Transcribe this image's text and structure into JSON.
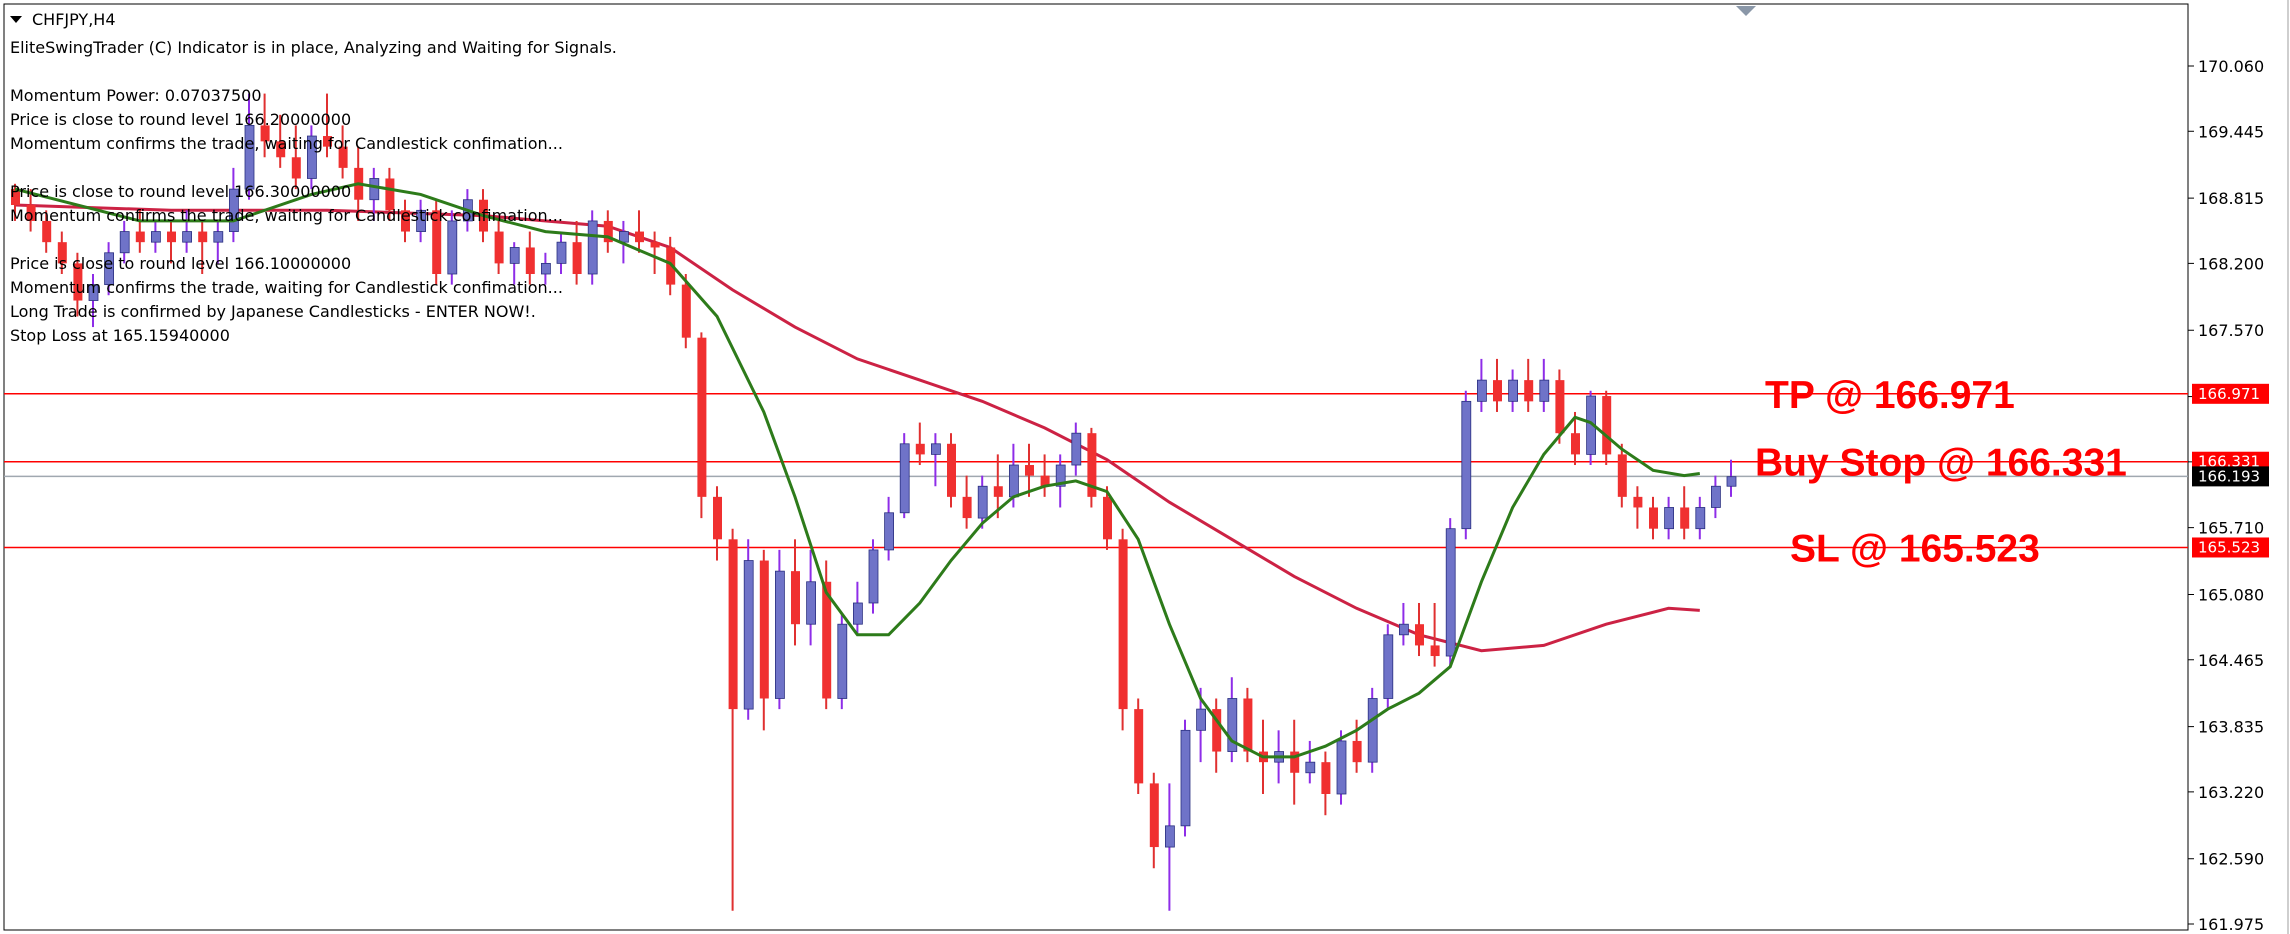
{
  "symbol": "CHFJPY,H4",
  "info_lines": [
    "EliteSwingTrader (C) Indicator is in place, Analyzing and Waiting for Signals.",
    "",
    "Momentum Power: 0.07037500",
    "Price is close to round level 166.20000000",
    "Momentum confirms the trade, waiting for Candlestick confimation...",
    "",
    "Price is close to round level 166.30000000",
    "Momentum confirms the trade, waiting for Candlestick confimation...",
    "",
    "Price is close to round level 166.10000000",
    "Momentum confirms the trade, waiting for Candlestick confimation...",
    "Long Trade is confirmed by Japanese Candlesticks - ENTER NOW!.",
    "Stop Loss at 165.15940000"
  ],
  "chart_data": {
    "type": "candlestick",
    "symbol": "CHFJPY",
    "timeframe": "H4",
    "ylim": [
      161.975,
      170.5
    ],
    "y_ticks": [
      "170.060",
      "169.445",
      "168.815",
      "168.200",
      "167.570",
      "166.945",
      "166.330",
      "165.710",
      "165.080",
      "164.465",
      "163.835",
      "163.220",
      "162.590",
      "161.975"
    ],
    "level_lines": [
      {
        "label": "TP @ 166.971",
        "value": 166.971,
        "tag": "166.971",
        "color": "#ff0000"
      },
      {
        "label": "Buy Stop @ 166.331",
        "value": 166.331,
        "tag": "166.331",
        "color": "#ff0000"
      },
      {
        "label": "SL @ 165.523",
        "value": 165.523,
        "tag": "165.523",
        "color": "#ff0000"
      }
    ],
    "current_price": {
      "value": 166.193,
      "tag": "166.193"
    },
    "colors": {
      "bull": "#6f73c8",
      "bear": "#f03030",
      "wick_bull": "#8e2de8",
      "wick_bear": "#e03030",
      "fast_ma": "#2d7b1a",
      "slow_ma": "#cc2244",
      "level": "#ff0000",
      "current": "#a0a8b0"
    },
    "candles": [
      [
        168.9,
        168.95,
        168.6,
        168.75
      ],
      [
        168.75,
        168.9,
        168.5,
        168.6
      ],
      [
        168.6,
        168.7,
        168.3,
        168.4
      ],
      [
        168.4,
        168.5,
        168.1,
        168.2
      ],
      [
        168.2,
        168.3,
        167.7,
        167.85
      ],
      [
        167.85,
        168.1,
        167.6,
        168.0
      ],
      [
        168.0,
        168.4,
        167.9,
        168.3
      ],
      [
        168.3,
        168.6,
        168.2,
        168.5
      ],
      [
        168.5,
        168.7,
        168.3,
        168.4
      ],
      [
        168.4,
        168.6,
        168.3,
        168.5
      ],
      [
        168.5,
        168.6,
        168.2,
        168.4
      ],
      [
        168.4,
        168.7,
        168.3,
        168.5
      ],
      [
        168.5,
        168.6,
        168.1,
        168.4
      ],
      [
        168.4,
        168.6,
        168.2,
        168.5
      ],
      [
        168.5,
        169.1,
        168.4,
        168.9
      ],
      [
        168.9,
        169.8,
        168.8,
        169.5
      ],
      [
        169.5,
        169.8,
        169.2,
        169.35
      ],
      [
        169.35,
        169.6,
        169.1,
        169.2
      ],
      [
        169.2,
        169.5,
        168.9,
        169.0
      ],
      [
        169.0,
        169.5,
        168.9,
        169.4
      ],
      [
        169.4,
        169.8,
        169.2,
        169.3
      ],
      [
        169.3,
        169.5,
        169.0,
        169.1
      ],
      [
        169.1,
        169.3,
        168.6,
        168.8
      ],
      [
        168.8,
        169.1,
        168.6,
        169.0
      ],
      [
        169.0,
        169.1,
        168.6,
        168.7
      ],
      [
        168.7,
        168.8,
        168.4,
        168.5
      ],
      [
        168.5,
        168.8,
        168.4,
        168.7
      ],
      [
        168.7,
        168.8,
        168.0,
        168.1
      ],
      [
        168.1,
        168.7,
        168.0,
        168.6
      ],
      [
        168.6,
        168.9,
        168.5,
        168.8
      ],
      [
        168.8,
        168.9,
        168.4,
        168.5
      ],
      [
        168.5,
        168.6,
        168.1,
        168.2
      ],
      [
        168.2,
        168.4,
        168.0,
        168.35
      ],
      [
        168.35,
        168.5,
        168.0,
        168.1
      ],
      [
        168.1,
        168.3,
        168.0,
        168.2
      ],
      [
        168.2,
        168.5,
        168.1,
        168.4
      ],
      [
        168.4,
        168.6,
        168.0,
        168.1
      ],
      [
        168.1,
        168.7,
        168.0,
        168.6
      ],
      [
        168.6,
        168.7,
        168.3,
        168.4
      ],
      [
        168.4,
        168.6,
        168.2,
        168.5
      ],
      [
        168.5,
        168.7,
        168.3,
        168.4
      ],
      [
        168.4,
        168.5,
        168.1,
        168.35
      ],
      [
        168.35,
        168.45,
        167.9,
        168.0
      ],
      [
        168.0,
        168.1,
        167.4,
        167.5
      ],
      [
        167.5,
        167.55,
        165.8,
        166.0
      ],
      [
        166.0,
        166.1,
        165.4,
        165.6
      ],
      [
        165.6,
        165.7,
        162.1,
        164.0
      ],
      [
        164.0,
        165.6,
        163.9,
        165.4
      ],
      [
        165.4,
        165.5,
        163.8,
        164.1
      ],
      [
        164.1,
        165.5,
        164.0,
        165.3
      ],
      [
        165.3,
        165.6,
        164.6,
        164.8
      ],
      [
        164.8,
        165.5,
        164.6,
        165.2
      ],
      [
        165.2,
        165.4,
        164.0,
        164.1
      ],
      [
        164.1,
        164.9,
        164.0,
        164.8
      ],
      [
        164.8,
        165.2,
        164.7,
        165.0
      ],
      [
        165.0,
        165.6,
        164.9,
        165.5
      ],
      [
        165.5,
        166.0,
        165.4,
        165.85
      ],
      [
        165.85,
        166.6,
        165.8,
        166.5
      ],
      [
        166.5,
        166.7,
        166.3,
        166.4
      ],
      [
        166.4,
        166.6,
        166.1,
        166.5
      ],
      [
        166.5,
        166.6,
        165.9,
        166.0
      ],
      [
        166.0,
        166.2,
        165.7,
        165.8
      ],
      [
        165.8,
        166.2,
        165.7,
        166.1
      ],
      [
        166.1,
        166.4,
        165.8,
        166.0
      ],
      [
        166.0,
        166.5,
        165.9,
        166.3
      ],
      [
        166.3,
        166.5,
        166.0,
        166.2
      ],
      [
        166.2,
        166.4,
        166.0,
        166.1
      ],
      [
        166.1,
        166.4,
        165.9,
        166.3
      ],
      [
        166.3,
        166.7,
        166.2,
        166.6
      ],
      [
        166.6,
        166.65,
        165.9,
        166.0
      ],
      [
        166.0,
        166.1,
        165.5,
        165.6
      ],
      [
        165.6,
        165.7,
        163.8,
        164.0
      ],
      [
        164.0,
        164.1,
        163.2,
        163.3
      ],
      [
        163.3,
        163.4,
        162.5,
        162.7
      ],
      [
        162.7,
        163.3,
        162.1,
        162.9
      ],
      [
        162.9,
        163.9,
        162.8,
        163.8
      ],
      [
        163.8,
        164.2,
        163.5,
        164.0
      ],
      [
        164.0,
        164.1,
        163.4,
        163.6
      ],
      [
        163.6,
        164.3,
        163.5,
        164.1
      ],
      [
        164.1,
        164.2,
        163.5,
        163.6
      ],
      [
        163.6,
        163.9,
        163.2,
        163.5
      ],
      [
        163.5,
        163.8,
        163.3,
        163.6
      ],
      [
        163.6,
        163.9,
        163.1,
        163.4
      ],
      [
        163.4,
        163.7,
        163.3,
        163.5
      ],
      [
        163.5,
        163.6,
        163.0,
        163.2
      ],
      [
        163.2,
        163.8,
        163.1,
        163.7
      ],
      [
        163.7,
        163.9,
        163.4,
        163.5
      ],
      [
        163.5,
        164.2,
        163.4,
        164.1
      ],
      [
        164.1,
        164.8,
        164.0,
        164.7
      ],
      [
        164.7,
        165.0,
        164.6,
        164.8
      ],
      [
        164.8,
        165.0,
        164.5,
        164.6
      ],
      [
        164.6,
        165.0,
        164.4,
        164.5
      ],
      [
        164.5,
        165.8,
        164.4,
        165.7
      ],
      [
        165.7,
        167.0,
        165.6,
        166.9
      ],
      [
        166.9,
        167.3,
        166.8,
        167.1
      ],
      [
        167.1,
        167.3,
        166.8,
        166.9
      ],
      [
        166.9,
        167.2,
        166.8,
        167.1
      ],
      [
        167.1,
        167.3,
        166.8,
        166.9
      ],
      [
        166.9,
        167.3,
        166.8,
        167.1
      ],
      [
        167.1,
        167.2,
        166.5,
        166.6
      ],
      [
        166.6,
        166.8,
        166.3,
        166.4
      ],
      [
        166.4,
        167.0,
        166.3,
        166.95
      ],
      [
        166.95,
        167.0,
        166.3,
        166.4
      ],
      [
        166.4,
        166.5,
        165.9,
        166.0
      ],
      [
        166.0,
        166.1,
        165.7,
        165.9
      ],
      [
        165.9,
        166.0,
        165.6,
        165.7
      ],
      [
        165.7,
        166.0,
        165.6,
        165.9
      ],
      [
        165.9,
        166.1,
        165.6,
        165.7
      ],
      [
        165.7,
        166.0,
        165.6,
        165.9
      ],
      [
        165.9,
        166.2,
        165.8,
        166.1
      ],
      [
        166.1,
        166.35,
        166.0,
        166.19
      ]
    ],
    "fast_ma": [
      [
        0,
        168.9
      ],
      [
        8,
        168.6
      ],
      [
        14,
        168.6
      ],
      [
        19,
        168.85
      ],
      [
        22,
        168.95
      ],
      [
        26,
        168.85
      ],
      [
        30,
        168.65
      ],
      [
        34,
        168.5
      ],
      [
        38,
        168.45
      ],
      [
        42,
        168.2
      ],
      [
        45,
        167.7
      ],
      [
        48,
        166.8
      ],
      [
        50,
        166.0
      ],
      [
        52,
        165.1
      ],
      [
        54,
        164.7
      ],
      [
        56,
        164.7
      ],
      [
        58,
        165.0
      ],
      [
        60,
        165.4
      ],
      [
        62,
        165.75
      ],
      [
        64,
        166.0
      ],
      [
        66,
        166.1
      ],
      [
        68,
        166.15
      ],
      [
        70,
        166.05
      ],
      [
        72,
        165.6
      ],
      [
        74,
        164.8
      ],
      [
        76,
        164.1
      ],
      [
        78,
        163.7
      ],
      [
        80,
        163.55
      ],
      [
        82,
        163.55
      ],
      [
        84,
        163.65
      ],
      [
        86,
        163.8
      ],
      [
        88,
        164.0
      ],
      [
        90,
        164.15
      ],
      [
        92,
        164.4
      ],
      [
        94,
        165.2
      ],
      [
        96,
        165.9
      ],
      [
        98,
        166.4
      ],
      [
        100,
        166.75
      ],
      [
        101,
        166.7
      ],
      [
        103,
        166.45
      ],
      [
        105,
        166.25
      ],
      [
        107,
        166.2
      ],
      [
        108,
        166.22
      ]
    ],
    "slow_ma": [
      [
        0,
        168.75
      ],
      [
        10,
        168.7
      ],
      [
        20,
        168.7
      ],
      [
        30,
        168.65
      ],
      [
        38,
        168.55
      ],
      [
        42,
        168.35
      ],
      [
        46,
        167.95
      ],
      [
        50,
        167.6
      ],
      [
        54,
        167.3
      ],
      [
        58,
        167.1
      ],
      [
        62,
        166.9
      ],
      [
        66,
        166.65
      ],
      [
        70,
        166.35
      ],
      [
        74,
        165.95
      ],
      [
        78,
        165.6
      ],
      [
        82,
        165.25
      ],
      [
        86,
        164.95
      ],
      [
        90,
        164.7
      ],
      [
        94,
        164.55
      ],
      [
        98,
        164.6
      ],
      [
        102,
        164.8
      ],
      [
        106,
        164.95
      ],
      [
        108,
        164.93
      ]
    ]
  }
}
